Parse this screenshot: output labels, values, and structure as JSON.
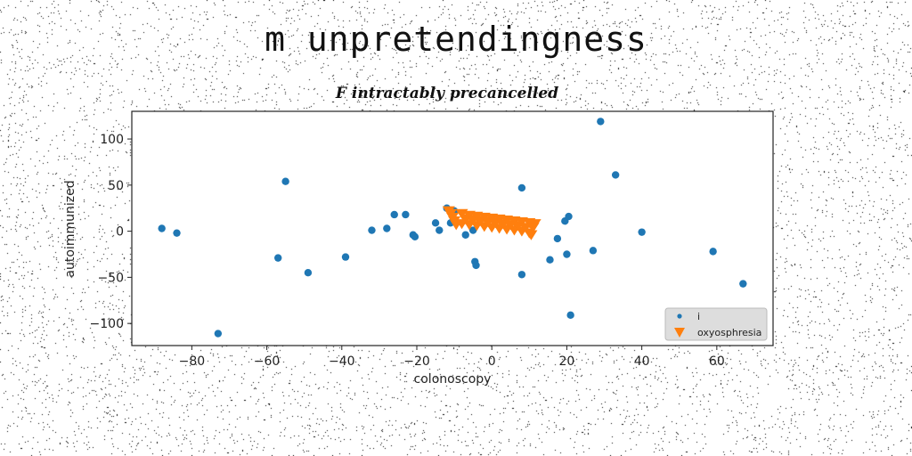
{
  "figure_title": "m unpretendingness",
  "chart_data": {
    "type": "scatter",
    "title": "F intractably precancelled",
    "xlabel": "colonoscopy",
    "ylabel": "autoimmunized",
    "xlim": [
      -96,
      75
    ],
    "ylim": [
      -124,
      130
    ],
    "xticks": [
      -80,
      -60,
      -40,
      -20,
      0,
      20,
      40,
      60
    ],
    "yticks": [
      -100,
      -50,
      0,
      50,
      100
    ],
    "xtick_labels": [
      "−80",
      "−60",
      "−40",
      "−20",
      "0",
      "20",
      "40",
      "60"
    ],
    "ytick_labels": [
      "−100",
      "−50",
      "0",
      "50",
      "100"
    ],
    "grid": false,
    "legend_position": "lower-right",
    "series": [
      {
        "name": "i",
        "marker": "circle",
        "color": "#1f77b4",
        "points": [
          [
            -88,
            3
          ],
          [
            -84,
            -2
          ],
          [
            -73,
            -111
          ],
          [
            -57,
            -29
          ],
          [
            -55,
            54
          ],
          [
            -49,
            -45
          ],
          [
            -39,
            -28
          ],
          [
            -32,
            1
          ],
          [
            -28,
            3
          ],
          [
            -26,
            18
          ],
          [
            -23,
            18
          ],
          [
            -21,
            -4
          ],
          [
            -20.5,
            -6
          ],
          [
            -15,
            9
          ],
          [
            -14,
            1
          ],
          [
            -12,
            25
          ],
          [
            -11,
            9
          ],
          [
            -10,
            22
          ],
          [
            -7,
            -4
          ],
          [
            -5,
            1
          ],
          [
            -4.5,
            -33
          ],
          [
            -4.2,
            -37
          ],
          [
            8,
            47
          ],
          [
            8,
            -47
          ],
          [
            15.5,
            -31
          ],
          [
            17.5,
            -8
          ],
          [
            19.5,
            11
          ],
          [
            20,
            -25
          ],
          [
            20.5,
            16
          ],
          [
            21,
            -91
          ],
          [
            27,
            -21
          ],
          [
            29,
            119
          ],
          [
            33,
            61
          ],
          [
            40,
            -1
          ],
          [
            59,
            -22
          ],
          [
            67,
            -57
          ]
        ]
      },
      {
        "name": "oxyosphresia",
        "marker": "triangle-down",
        "color": "#ff7f0e",
        "points": [
          [
            -11.5,
            23
          ],
          [
            -11,
            20
          ],
          [
            -10.5,
            16
          ],
          [
            -10,
            12
          ],
          [
            -9.5,
            8
          ],
          [
            -8,
            20
          ],
          [
            -6,
            18
          ],
          [
            -4,
            17
          ],
          [
            -2,
            16
          ],
          [
            0,
            15
          ],
          [
            2,
            14
          ],
          [
            4,
            13
          ],
          [
            6,
            12
          ],
          [
            8,
            11
          ],
          [
            10,
            10
          ],
          [
            11.5,
            9
          ],
          [
            -8,
            9
          ],
          [
            -6,
            8
          ],
          [
            -4,
            7
          ],
          [
            -2,
            6
          ],
          [
            0,
            5
          ],
          [
            2,
            4
          ],
          [
            4,
            3
          ],
          [
            6,
            2
          ],
          [
            8,
            1
          ],
          [
            10,
            -1
          ],
          [
            10.5,
            -3
          ],
          [
            -7,
            14
          ],
          [
            -5,
            13
          ],
          [
            -3,
            12
          ],
          [
            -1,
            11
          ],
          [
            1,
            10
          ],
          [
            3,
            9
          ],
          [
            5,
            8
          ],
          [
            7,
            7
          ],
          [
            9,
            5
          ],
          [
            11,
            5
          ]
        ]
      }
    ]
  }
}
